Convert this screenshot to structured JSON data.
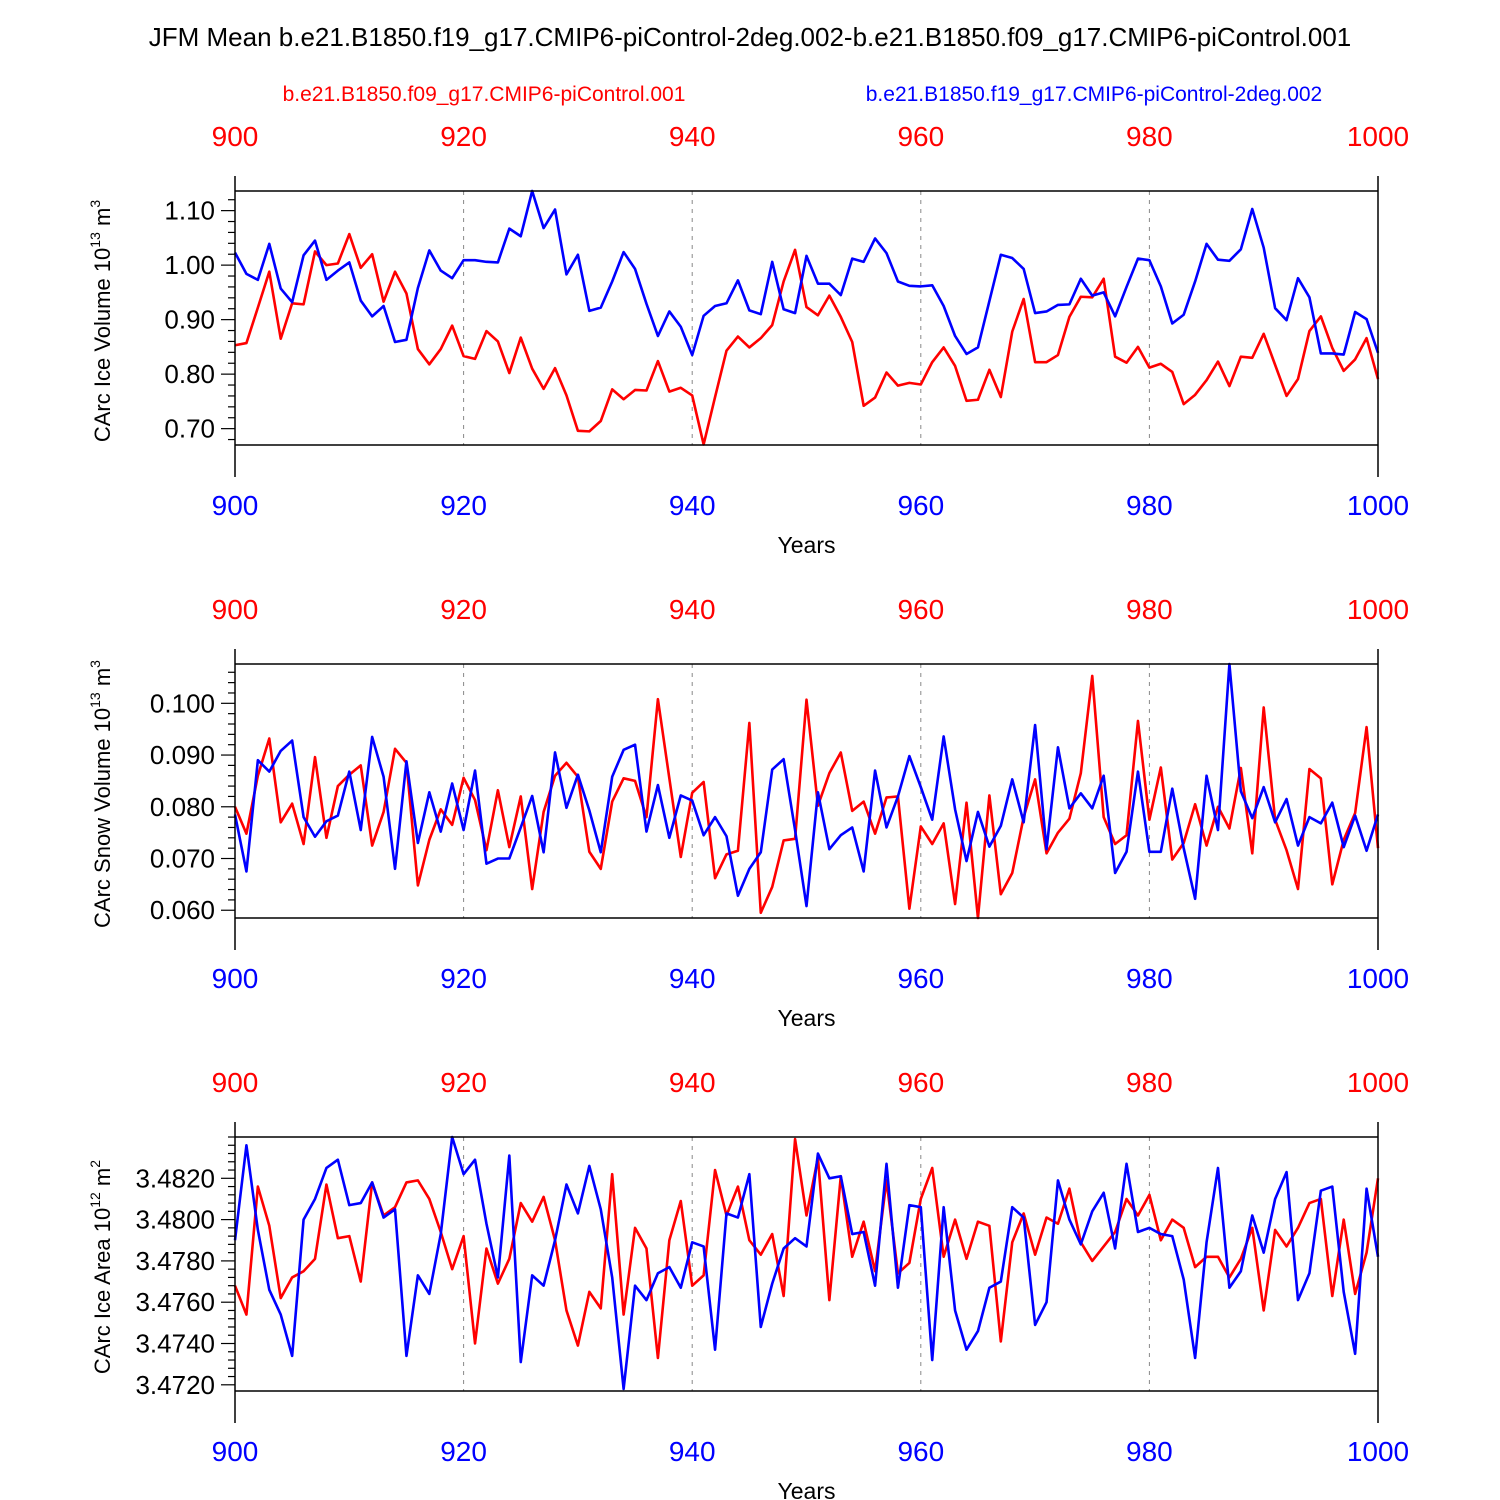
{
  "figure_title": "JFM Mean b.e21.B1850.f19_g17.CMIP6-piControl-2deg.002-b.e21.B1850.f09_g17.CMIP6-piControl.001",
  "legend": {
    "series_a": {
      "label": "b.e21.B1850.f09_g17.CMIP6-piControl.001",
      "color": "#ff0000"
    },
    "series_b": {
      "label": "b.e21.B1850.f19_g17.CMIP6-piControl-2deg.002",
      "color": "#0000ff"
    }
  },
  "chart_data": [
    {
      "type": "line",
      "ylabel_main": "CArc Ice Volume 10",
      "ylabel_exp": "13",
      "ylabel_unit": " m",
      "ylabel_unit_exp": "3",
      "xlabel": "Years",
      "xlim": [
        900,
        1000
      ],
      "ylim": [
        0.67,
        1.136
      ],
      "x_ticks": [
        "900",
        "920",
        "940",
        "960",
        "980",
        "1000"
      ],
      "y_ticks": [
        "0.70",
        "0.80",
        "0.90",
        "1.00",
        "1.10"
      ],
      "series": [
        {
          "name": "b.e21.B1850.f09_g17.CMIP6-piControl.001",
          "color": "#ff0000",
          "start_year": 900,
          "values": [
            0.853,
            0.857,
            0.922,
            0.988,
            0.865,
            0.93,
            0.928,
            1.025,
            1.0,
            1.003,
            1.057,
            0.995,
            1.02,
            0.933,
            0.988,
            0.948,
            0.846,
            0.818,
            0.846,
            0.889,
            0.833,
            0.828,
            0.879,
            0.86,
            0.802,
            0.867,
            0.81,
            0.773,
            0.811,
            0.761,
            0.696,
            0.695,
            0.714,
            0.772,
            0.754,
            0.771,
            0.77,
            0.824,
            0.768,
            0.775,
            0.761,
            0.671,
            0.758,
            0.843,
            0.869,
            0.849,
            0.866,
            0.89,
            0.97,
            1.028,
            0.923,
            0.908,
            0.944,
            0.905,
            0.859,
            0.742,
            0.757,
            0.803,
            0.779,
            0.784,
            0.781,
            0.822,
            0.849,
            0.815,
            0.751,
            0.753,
            0.808,
            0.758,
            0.878,
            0.938,
            0.822,
            0.822,
            0.835,
            0.905,
            0.942,
            0.941,
            0.975,
            0.832,
            0.821,
            0.85,
            0.812,
            0.819,
            0.804,
            0.745,
            0.762,
            0.789,
            0.823,
            0.778,
            0.832,
            0.83,
            0.874,
            0.817,
            0.76,
            0.791,
            0.879,
            0.906,
            0.848,
            0.806,
            0.827,
            0.866,
            0.791
          ]
        },
        {
          "name": "b.e21.B1850.f19_g17.CMIP6-piControl-2deg.002",
          "color": "#0000ff",
          "start_year": 900,
          "values": [
            1.023,
            0.984,
            0.973,
            1.039,
            0.957,
            0.932,
            1.018,
            1.045,
            0.973,
            0.99,
            1.005,
            0.935,
            0.906,
            0.925,
            0.859,
            0.863,
            0.958,
            1.027,
            0.99,
            0.976,
            1.009,
            1.009,
            1.006,
            1.005,
            1.067,
            1.053,
            1.136,
            1.068,
            1.102,
            0.983,
            1.019,
            0.916,
            0.922,
            0.97,
            1.024,
            0.993,
            0.929,
            0.87,
            0.915,
            0.887,
            0.835,
            0.907,
            0.925,
            0.93,
            0.972,
            0.917,
            0.91,
            1.006,
            0.919,
            0.912,
            1.017,
            0.966,
            0.966,
            0.945,
            1.012,
            1.006,
            1.049,
            1.022,
            0.97,
            0.962,
            0.961,
            0.963,
            0.925,
            0.87,
            0.837,
            0.849,
            0.934,
            1.019,
            1.013,
            0.993,
            0.912,
            0.915,
            0.927,
            0.928,
            0.975,
            0.944,
            0.95,
            0.906,
            0.96,
            1.012,
            1.009,
            0.961,
            0.893,
            0.909,
            0.97,
            1.039,
            1.01,
            1.008,
            1.029,
            1.103,
            1.032,
            0.921,
            0.899,
            0.976,
            0.941,
            0.838,
            0.838,
            0.836,
            0.914,
            0.901,
            0.839
          ]
        }
      ]
    },
    {
      "type": "line",
      "ylabel_main": "CArc Snow Volume 10",
      "ylabel_exp": "13",
      "ylabel_unit": " m",
      "ylabel_unit_exp": "3",
      "xlabel": "Years",
      "xlim": [
        900,
        1000
      ],
      "ylim": [
        0.0585,
        0.1076
      ],
      "x_ticks": [
        "900",
        "920",
        "940",
        "960",
        "980",
        "1000"
      ],
      "y_ticks": [
        "0.060",
        "0.070",
        "0.080",
        "0.090",
        "0.100"
      ],
      "series": [
        {
          "name": "b.e21.B1850.f09_g17.CMIP6-piControl.001",
          "color": "#ff0000",
          "start_year": 900,
          "values": [
            0.08,
            0.0748,
            0.086,
            0.0932,
            0.077,
            0.0806,
            0.0728,
            0.0896,
            0.074,
            0.084,
            0.0862,
            0.088,
            0.0725,
            0.079,
            0.0912,
            0.0885,
            0.0648,
            0.0736,
            0.0795,
            0.0765,
            0.0856,
            0.0813,
            0.0716,
            0.0832,
            0.0722,
            0.082,
            0.0641,
            0.079,
            0.086,
            0.0885,
            0.0858,
            0.0713,
            0.068,
            0.081,
            0.0855,
            0.085,
            0.078,
            0.1008,
            0.0855,
            0.0703,
            0.0827,
            0.0848,
            0.0662,
            0.0708,
            0.0715,
            0.0962,
            0.0595,
            0.0645,
            0.0735,
            0.0738,
            0.1007,
            0.0802,
            0.0865,
            0.0905,
            0.0792,
            0.081,
            0.0748,
            0.0818,
            0.082,
            0.0603,
            0.0762,
            0.0728,
            0.0768,
            0.0612,
            0.0808,
            0.0585,
            0.0822,
            0.0631,
            0.0672,
            0.078,
            0.0853,
            0.071,
            0.075,
            0.0777,
            0.0865,
            0.1053,
            0.078,
            0.0728,
            0.0745,
            0.0966,
            0.0775,
            0.0876,
            0.0698,
            0.073,
            0.0805,
            0.0725,
            0.08,
            0.0758,
            0.0875,
            0.071,
            0.0992,
            0.0775,
            0.0716,
            0.0641,
            0.0873,
            0.0855,
            0.065,
            0.0736,
            0.0788,
            0.0954,
            0.072
          ]
        },
        {
          "name": "b.e21.B1850.f19_g17.CMIP6-piControl-2deg.002",
          "color": "#0000ff",
          "start_year": 900,
          "values": [
            0.0785,
            0.0675,
            0.089,
            0.0868,
            0.0908,
            0.0928,
            0.078,
            0.0742,
            0.0772,
            0.0783,
            0.0868,
            0.0755,
            0.0935,
            0.0858,
            0.068,
            0.0888,
            0.073,
            0.0828,
            0.0752,
            0.0845,
            0.0755,
            0.087,
            0.069,
            0.07,
            0.07,
            0.076,
            0.0821,
            0.0712,
            0.0905,
            0.0798,
            0.0862,
            0.0793,
            0.0712,
            0.0858,
            0.091,
            0.092,
            0.0752,
            0.0842,
            0.074,
            0.0822,
            0.0812,
            0.0745,
            0.078,
            0.0743,
            0.0628,
            0.068,
            0.0712,
            0.0872,
            0.0892,
            0.0755,
            0.0608,
            0.0828,
            0.0718,
            0.0745,
            0.076,
            0.0675,
            0.087,
            0.076,
            0.082,
            0.0898,
            0.0838,
            0.0775,
            0.0936,
            0.0795,
            0.0695,
            0.079,
            0.0723,
            0.0763,
            0.0853,
            0.077,
            0.0958,
            0.0718,
            0.0915,
            0.0797,
            0.0826,
            0.0797,
            0.086,
            0.0672,
            0.0713,
            0.0868,
            0.0713,
            0.0713,
            0.0835,
            0.072,
            0.0622,
            0.086,
            0.0755,
            0.1076,
            0.083,
            0.0778,
            0.0838,
            0.077,
            0.0815,
            0.0725,
            0.078,
            0.0768,
            0.0808,
            0.0722,
            0.0783,
            0.0715,
            0.0785
          ]
        }
      ]
    },
    {
      "type": "line",
      "ylabel_main": "CArc Ice Area 10",
      "ylabel_exp": "12",
      "ylabel_unit": " m",
      "ylabel_unit_exp": "2",
      "xlabel": "Years",
      "xlim": [
        900,
        1000
      ],
      "ylim": [
        3.4717,
        3.484
      ],
      "x_ticks": [
        "900",
        "920",
        "940",
        "960",
        "980",
        "1000"
      ],
      "y_ticks": [
        "3.4720",
        "3.4740",
        "3.4760",
        "3.4780",
        "3.4800",
        "3.4820"
      ],
      "series": [
        {
          "name": "b.e21.B1850.f09_g17.CMIP6-piControl.001",
          "color": "#ff0000",
          "start_year": 900,
          "values": [
            3.4768,
            3.4754,
            3.4816,
            3.4797,
            3.4762,
            3.4772,
            3.4775,
            3.4781,
            3.4817,
            3.4791,
            3.4792,
            3.477,
            3.4818,
            3.4802,
            3.4806,
            3.4818,
            3.4819,
            3.481,
            3.4794,
            3.4776,
            3.4792,
            3.474,
            3.4786,
            3.4769,
            3.4781,
            3.4808,
            3.4799,
            3.4811,
            3.479,
            3.4756,
            3.4739,
            3.4765,
            3.4757,
            3.4822,
            3.4754,
            3.4796,
            3.4786,
            3.4733,
            3.479,
            3.4809,
            3.4768,
            3.4773,
            3.4824,
            3.4802,
            3.4816,
            3.479,
            3.4783,
            3.4793,
            3.4763,
            3.4839,
            3.4802,
            3.483,
            3.4761,
            3.4821,
            3.4782,
            3.4799,
            3.4775,
            3.4819,
            3.4774,
            3.4779,
            3.481,
            3.4825,
            3.4782,
            3.48,
            3.4781,
            3.4799,
            3.4797,
            3.4741,
            3.4789,
            3.4803,
            3.4783,
            3.4801,
            3.4798,
            3.4815,
            3.4789,
            3.478,
            3.4787,
            3.4794,
            3.481,
            3.4802,
            3.4812,
            3.479,
            3.48,
            3.4796,
            3.4777,
            3.4782,
            3.4782,
            3.4772,
            3.4781,
            3.4796,
            3.4756,
            3.4795,
            3.4787,
            3.4796,
            3.4808,
            3.481,
            3.4763,
            3.48,
            3.4764,
            3.4784,
            3.482
          ]
        },
        {
          "name": "b.e21.B1850.f19_g17.CMIP6-piControl-2deg.002",
          "color": "#0000ff",
          "start_year": 900,
          "values": [
            3.479,
            3.4836,
            3.4795,
            3.4766,
            3.4754,
            3.4734,
            3.48,
            3.481,
            3.4825,
            3.4829,
            3.4807,
            3.4808,
            3.4818,
            3.4801,
            3.4805,
            3.4734,
            3.4773,
            3.4764,
            3.4793,
            3.484,
            3.4822,
            3.4829,
            3.4798,
            3.4772,
            3.4831,
            3.4731,
            3.4773,
            3.4768,
            3.479,
            3.4817,
            3.4803,
            3.4826,
            3.4805,
            3.4772,
            3.4718,
            3.4768,
            3.4761,
            3.4774,
            3.4777,
            3.4767,
            3.4789,
            3.4787,
            3.4737,
            3.4803,
            3.4801,
            3.4822,
            3.4748,
            3.4769,
            3.4786,
            3.4791,
            3.4787,
            3.4832,
            3.482,
            3.4821,
            3.4793,
            3.4794,
            3.4768,
            3.4827,
            3.4767,
            3.4807,
            3.4806,
            3.4732,
            3.4806,
            3.4756,
            3.4737,
            3.4746,
            3.4767,
            3.477,
            3.4806,
            3.4801,
            3.4749,
            3.476,
            3.4819,
            3.48,
            3.4788,
            3.4804,
            3.4813,
            3.4786,
            3.4827,
            3.4794,
            3.4796,
            3.4793,
            3.4792,
            3.4771,
            3.4733,
            3.4789,
            3.4825,
            3.4767,
            3.4775,
            3.4802,
            3.4784,
            3.481,
            3.4823,
            3.4761,
            3.4774,
            3.4814,
            3.4816,
            3.4765,
            3.4735,
            3.4815,
            3.4782
          ]
        }
      ]
    }
  ]
}
